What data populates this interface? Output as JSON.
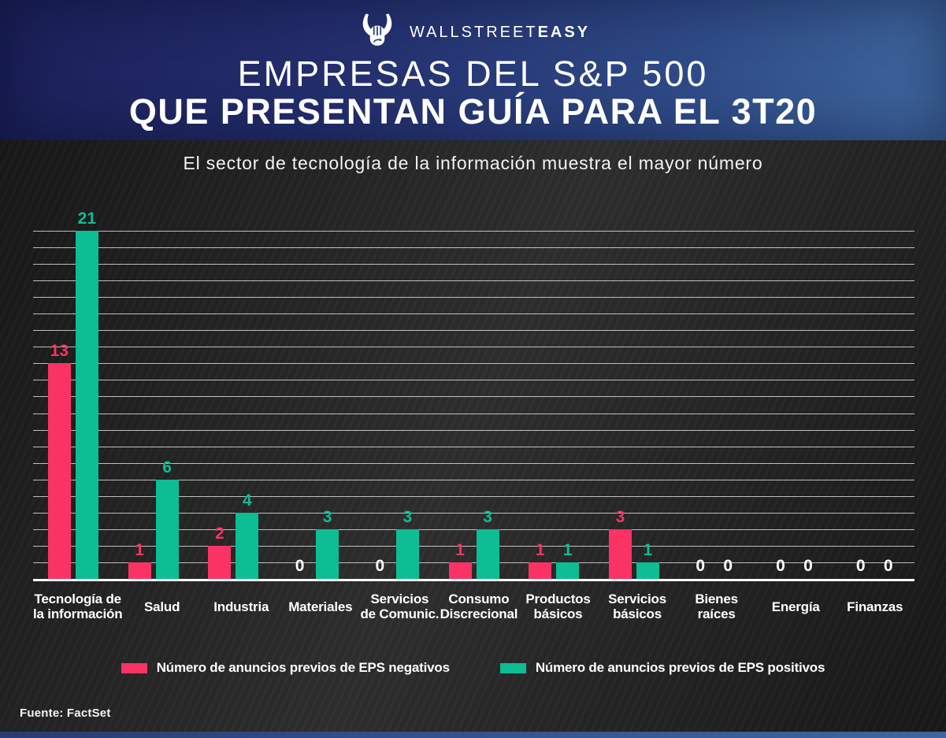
{
  "brand": {
    "name_light": "WALLSTREET",
    "name_bold": "EASY",
    "icon": "bull-fist-icon"
  },
  "header": {
    "title_line1": "EMPRESAS DEL S&P 500",
    "title_line2": "QUE PRESENTAN GUÍA PARA EL 3T20"
  },
  "subtitle": "El sector de tecnología de la información muestra el mayor número",
  "source": "Fuente: FactSet",
  "colors": {
    "negative": "#fb3365",
    "positive": "#0dbd93",
    "zero_label": "#ffffff",
    "header_dark": "#1b1f58",
    "header_light": "#3e669d",
    "background": "#232323",
    "gridline": "#e0e0e0",
    "baseline": "#ffffff"
  },
  "legend": [
    {
      "label": "Número de anuncios previos de EPS negativos",
      "color": "#fb3365"
    },
    {
      "label": "Número de anuncios previos de EPS positivos",
      "color": "#0dbd93"
    }
  ],
  "chart_data": {
    "type": "bar",
    "title": "Empresas del S&P 500 que presentan guía para el 3T20",
    "subtitle": "El sector de tecnología de la información muestra el mayor número",
    "categories": [
      "Tecnología de la información",
      "Salud",
      "Industria",
      "Materiales",
      "Servicios de Comunic.",
      "Consumo Discrecional",
      "Productos básicos",
      "Servicios básicos",
      "Bienes raíces",
      "Energía",
      "Finanzas"
    ],
    "category_label_lines": [
      [
        "Tecnología de",
        "la información"
      ],
      [
        "Salud"
      ],
      [
        "Industria"
      ],
      [
        "Materiales"
      ],
      [
        "Servicios",
        "de Comunic."
      ],
      [
        "Consumo",
        "Discrecional"
      ],
      [
        "Productos",
        "básicos"
      ],
      [
        "Servicios",
        "básicos"
      ],
      [
        "Bienes",
        "raíces"
      ],
      [
        "Energía"
      ],
      [
        "Finanzas"
      ]
    ],
    "series": [
      {
        "name": "Número de anuncios previos de EPS negativos",
        "color": "#fb3365",
        "values": [
          13,
          1,
          2,
          0,
          0,
          1,
          1,
          3,
          0,
          0,
          0
        ]
      },
      {
        "name": "Número de anuncios previos de EPS positivos",
        "color": "#0dbd93",
        "values": [
          21,
          6,
          4,
          3,
          3,
          3,
          1,
          1,
          0,
          0,
          0
        ]
      }
    ],
    "ylim": [
      0,
      21
    ],
    "gridline_step": 1,
    "grid": "horizontal gridlines every 1 unit, white baseline",
    "legend_position": "bottom",
    "data_labels": "above each bar, colored like its series; zeros shown in white above baseline"
  }
}
